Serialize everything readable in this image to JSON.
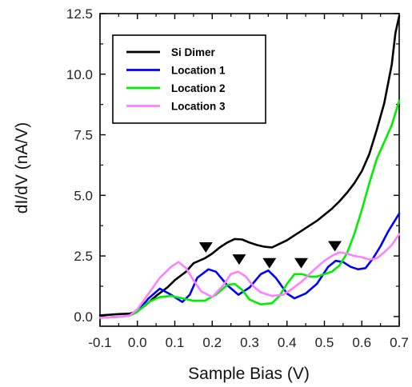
{
  "chart_data": {
    "type": "line",
    "title": "",
    "xlabel": "Sample Bias (V)",
    "ylabel": "dI/dV (nA/V)",
    "xlim": [
      -0.1,
      0.7
    ],
    "ylim": [
      -0.4,
      12.5
    ],
    "grid": false,
    "legend_position": "top-left",
    "x_ticks": [
      -0.1,
      0.0,
      0.1,
      0.2,
      0.3,
      0.4,
      0.5,
      0.6,
      0.7
    ],
    "x_tick_labels": [
      "-0.1",
      "0.0",
      "0.1",
      "0.2",
      "0.3",
      "0.4",
      "0.5",
      "0.6",
      "0.7"
    ],
    "y_ticks": [
      0.0,
      2.5,
      5.0,
      7.5,
      10.0,
      12.5
    ],
    "y_tick_labels": [
      "0.0",
      "2.5",
      "5.0",
      "7.5",
      "10.0",
      "12.5"
    ],
    "series": [
      {
        "name": "Si Dimer",
        "color": "#000000",
        "x": [
          -0.1,
          -0.05,
          -0.02,
          0.0,
          0.02,
          0.05,
          0.08,
          0.1,
          0.13,
          0.15,
          0.18,
          0.2,
          0.22,
          0.24,
          0.26,
          0.28,
          0.3,
          0.32,
          0.34,
          0.36,
          0.38,
          0.4,
          0.42,
          0.44,
          0.46,
          0.48,
          0.5,
          0.52,
          0.54,
          0.56,
          0.58,
          0.6,
          0.62,
          0.64,
          0.66,
          0.68,
          0.69,
          0.7
        ],
        "y": [
          0.05,
          0.1,
          0.12,
          0.22,
          0.45,
          0.85,
          1.2,
          1.5,
          1.85,
          2.2,
          2.4,
          2.6,
          2.85,
          3.05,
          3.2,
          3.18,
          3.05,
          2.95,
          2.88,
          2.85,
          3.0,
          3.15,
          3.35,
          3.55,
          3.75,
          3.95,
          4.2,
          4.45,
          4.75,
          5.1,
          5.5,
          6.0,
          6.7,
          7.7,
          8.8,
          10.4,
          11.7,
          12.4
        ]
      },
      {
        "name": "Location 1",
        "color": "#0000ff",
        "x": [
          -0.1,
          -0.04,
          -0.02,
          0.0,
          0.03,
          0.06,
          0.09,
          0.12,
          0.14,
          0.16,
          0.19,
          0.21,
          0.24,
          0.27,
          0.3,
          0.33,
          0.35,
          0.37,
          0.4,
          0.42,
          0.45,
          0.48,
          0.51,
          0.53,
          0.55,
          0.57,
          0.59,
          0.61,
          0.63,
          0.65,
          0.67,
          0.7
        ],
        "y": [
          -0.05,
          0.0,
          0.05,
          0.2,
          0.75,
          1.15,
          0.9,
          0.6,
          0.9,
          1.6,
          1.95,
          1.85,
          1.3,
          0.9,
          1.2,
          1.75,
          1.9,
          1.6,
          0.95,
          0.75,
          0.95,
          1.35,
          2.05,
          2.3,
          2.25,
          2.05,
          1.95,
          2.0,
          2.4,
          2.9,
          3.5,
          4.25
        ]
      },
      {
        "name": "Location 2",
        "color": "#00ee00",
        "x": [
          -0.1,
          -0.04,
          -0.02,
          0.0,
          0.03,
          0.06,
          0.09,
          0.12,
          0.15,
          0.18,
          0.21,
          0.24,
          0.26,
          0.28,
          0.3,
          0.33,
          0.36,
          0.38,
          0.4,
          0.42,
          0.44,
          0.46,
          0.48,
          0.5,
          0.52,
          0.54,
          0.56,
          0.58,
          0.6,
          0.62,
          0.64,
          0.66,
          0.68,
          0.7
        ],
        "y": [
          -0.05,
          0.0,
          0.05,
          0.2,
          0.6,
          0.8,
          0.85,
          0.75,
          0.65,
          0.65,
          0.9,
          1.3,
          1.35,
          1.1,
          0.7,
          0.5,
          0.55,
          0.85,
          1.35,
          1.75,
          1.75,
          1.65,
          1.65,
          1.75,
          1.85,
          2.1,
          2.6,
          3.4,
          4.4,
          5.5,
          6.5,
          7.2,
          7.9,
          8.9
        ]
      },
      {
        "name": "Location 3",
        "color": "#ff80ff",
        "x": [
          -0.1,
          -0.04,
          -0.02,
          0.0,
          0.03,
          0.06,
          0.09,
          0.11,
          0.13,
          0.15,
          0.17,
          0.2,
          0.23,
          0.25,
          0.27,
          0.29,
          0.31,
          0.33,
          0.36,
          0.39,
          0.41,
          0.44,
          0.47,
          0.5,
          0.52,
          0.54,
          0.56,
          0.58,
          0.6,
          0.62,
          0.64,
          0.66,
          0.68,
          0.7
        ],
        "y": [
          -0.05,
          0.0,
          0.05,
          0.3,
          0.95,
          1.6,
          2.05,
          2.25,
          2.0,
          1.5,
          1.05,
          0.8,
          1.3,
          1.75,
          1.85,
          1.65,
          1.25,
          1.0,
          0.85,
          0.9,
          1.1,
          1.45,
          1.9,
          2.3,
          2.5,
          2.65,
          2.6,
          2.5,
          2.45,
          2.35,
          2.4,
          2.65,
          2.95,
          3.4
        ]
      }
    ],
    "annotations": [
      {
        "type": "triangle-down",
        "x": 0.183,
        "y": 2.85
      },
      {
        "type": "triangle-down",
        "x": 0.272,
        "y": 2.35
      },
      {
        "type": "triangle-down",
        "x": 0.353,
        "y": 2.2
      },
      {
        "type": "triangle-down",
        "x": 0.438,
        "y": 2.2
      },
      {
        "type": "triangle-down",
        "x": 0.528,
        "y": 2.9
      }
    ]
  }
}
